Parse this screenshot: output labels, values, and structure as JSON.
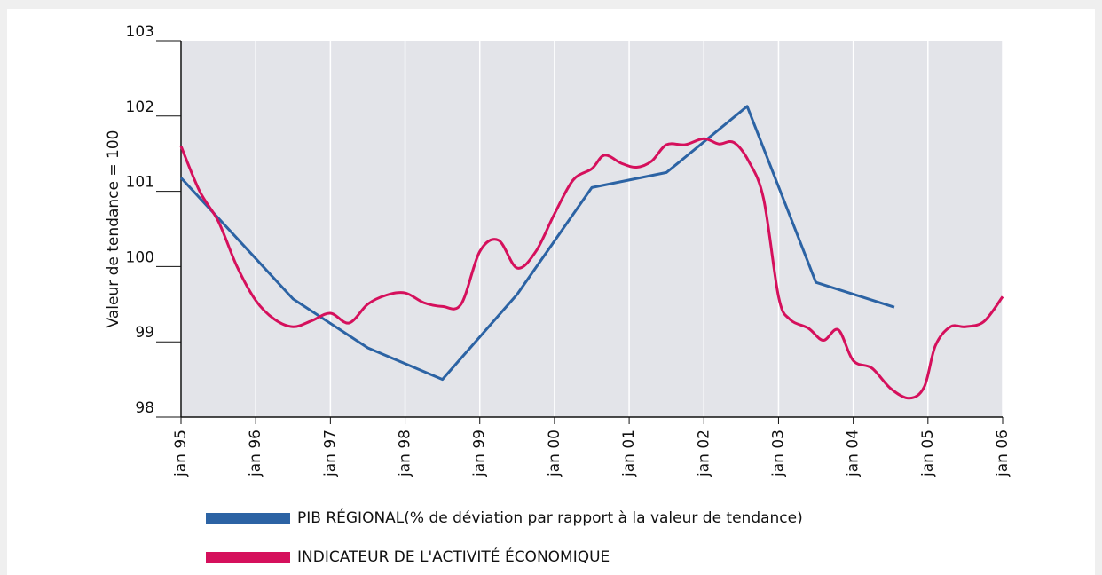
{
  "chart_data": {
    "type": "line",
    "ylabel": "Valeur de tendance = 100",
    "xlim": [
      1995,
      2006
    ],
    "xticks": [
      {
        "value": 1995,
        "label": "jan 95"
      },
      {
        "value": 1996,
        "label": "jan 96"
      },
      {
        "value": 1997,
        "label": "jan 97"
      },
      {
        "value": 1998,
        "label": "jan 98"
      },
      {
        "value": 1999,
        "label": "jan 99"
      },
      {
        "value": 2000,
        "label": "jan 00"
      },
      {
        "value": 2001,
        "label": "jan 01"
      },
      {
        "value": 2002,
        "label": "jan 02"
      },
      {
        "value": 2003,
        "label": "jan 03"
      },
      {
        "value": 2004,
        "label": "jan 04"
      },
      {
        "value": 2005,
        "label": "jan 05"
      },
      {
        "value": 2006,
        "label": "jan 06"
      }
    ],
    "ylim": [
      98,
      103
    ],
    "yticks": [
      98,
      99,
      100,
      101,
      102,
      103
    ],
    "grid": true,
    "series": [
      {
        "name": "PIB RÉGIONAL(% de déviation par rapport à la valeur de tendance)",
        "color": "#2c63a4",
        "x": [
          1995,
          1996.5,
          1997.5,
          1998.5,
          1999.5,
          2000.5,
          2001.5,
          2002.58,
          2003.5,
          2004.55
        ],
        "values": [
          101.18,
          99.57,
          98.92,
          98.5,
          99.63,
          101.05,
          101.25,
          102.13,
          99.79,
          99.46
        ]
      },
      {
        "name": "INDICATEUR DE L'ACTIVITÉ ÉCONOMIQUE",
        "color": "#d5105c",
        "x": [
          1995,
          1995.25,
          1995.5,
          1995.75,
          1996,
          1996.25,
          1996.5,
          1996.75,
          1997,
          1997.25,
          1997.5,
          1997.75,
          1998,
          1998.25,
          1998.5,
          1998.75,
          1999,
          1999.25,
          1999.5,
          1999.75,
          2000,
          2000.25,
          2000.5,
          2000.67,
          2000.9,
          2001.1,
          2001.3,
          2001.5,
          2001.75,
          2002,
          2002.2,
          2002.4,
          2002.6,
          2002.8,
          2003,
          2003.15,
          2003.4,
          2003.6,
          2003.8,
          2004,
          2004.25,
          2004.5,
          2004.75,
          2004.95,
          2005.1,
          2005.3,
          2005.5,
          2005.75,
          2006
        ],
        "values": [
          101.6,
          101.0,
          100.6,
          100.0,
          99.55,
          99.3,
          99.2,
          99.28,
          99.38,
          99.25,
          99.5,
          99.62,
          99.65,
          99.52,
          99.47,
          99.5,
          100.2,
          100.35,
          99.98,
          100.2,
          100.7,
          101.15,
          101.3,
          101.48,
          101.37,
          101.32,
          101.4,
          101.62,
          101.62,
          101.7,
          101.63,
          101.65,
          101.4,
          100.9,
          99.6,
          99.3,
          99.18,
          99.02,
          99.16,
          98.75,
          98.65,
          98.38,
          98.25,
          98.4,
          98.95,
          99.2,
          99.2,
          99.27,
          99.6
        ]
      }
    ]
  }
}
